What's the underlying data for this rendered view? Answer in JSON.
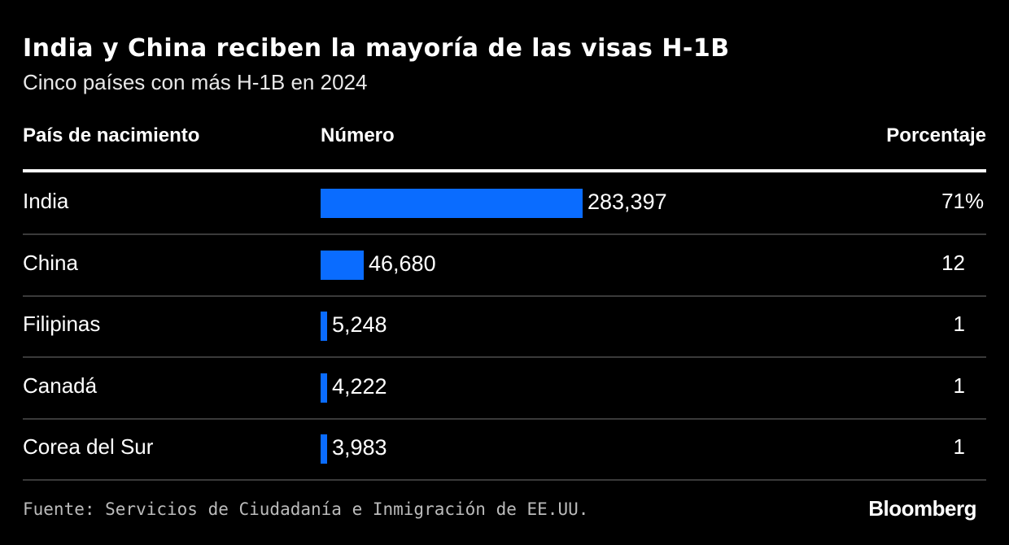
{
  "title": "India y China reciben la mayoría de las visas H-1B",
  "subtitle": "Cinco países con más H-1B en 2024",
  "source": "Fuente: Servicios de Ciudadanía e Inmigración de EE.UU.",
  "logo": "Bloomberg",
  "colors": {
    "bar": "#0a6cff",
    "background": "#000000"
  },
  "chart_data": {
    "type": "table",
    "columns": [
      "País de nacimiento",
      "Número",
      "Porcentaje"
    ],
    "categories": [
      "India",
      "China",
      "Filipinas",
      "Canadá",
      "Corea del Sur"
    ],
    "values": [
      283397,
      46680,
      5248,
      4222,
      3983
    ],
    "value_labels": [
      "283,397",
      "46,680",
      "5,248",
      "4,222",
      "3,983"
    ],
    "percent": [
      "71",
      "12",
      "1",
      "1",
      "1"
    ],
    "percent_suffix": "%"
  }
}
